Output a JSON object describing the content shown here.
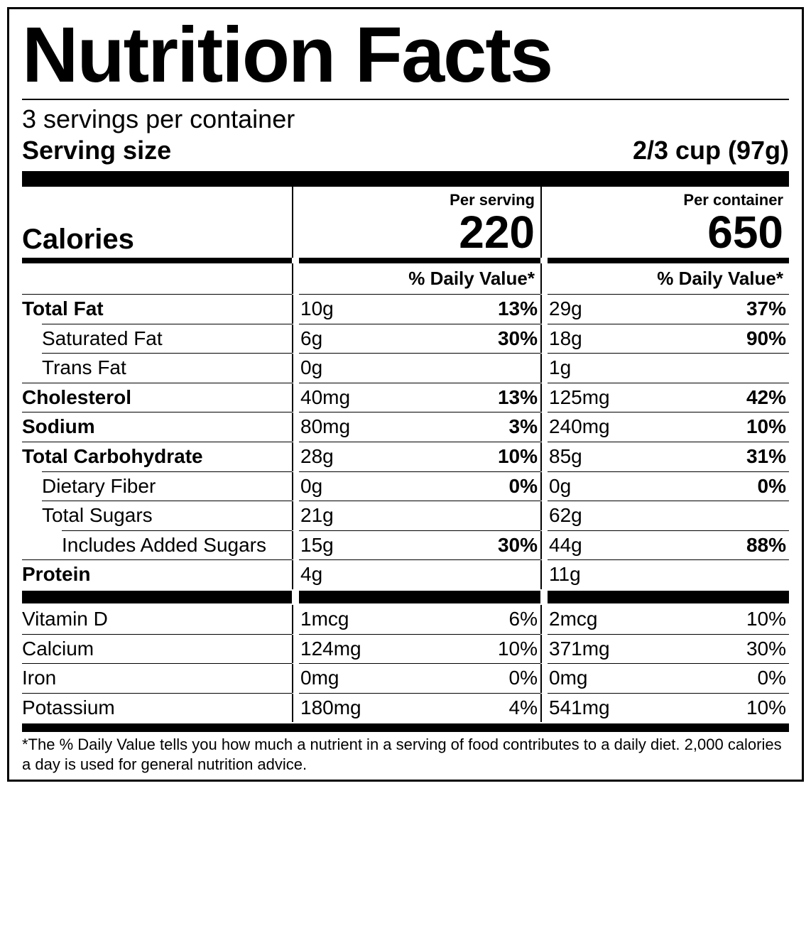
{
  "title": "Nutrition Facts",
  "servings_per_container": "3 servings per container",
  "serving_size_label": "Serving size",
  "serving_size_value": "2/3 cup (97g)",
  "calories_label": "Calories",
  "per_serving_label": "Per serving",
  "per_container_label": "Per container",
  "calories_serving": "220",
  "calories_container": "650",
  "dv_header": "% Daily Value*",
  "nutrients": [
    {
      "name": "Total Fat",
      "bold": true,
      "indent": 0,
      "s_amt": "10g",
      "s_dv": "13%",
      "c_amt": "29g",
      "c_dv": "37%",
      "dv_bold": true
    },
    {
      "name": "Saturated Fat",
      "bold": false,
      "indent": 1,
      "s_amt": "6g",
      "s_dv": "30%",
      "c_amt": "18g",
      "c_dv": "90%",
      "dv_bold": true
    },
    {
      "name": "Trans Fat",
      "bold": false,
      "indent": 1,
      "s_amt": "0g",
      "s_dv": "",
      "c_amt": "1g",
      "c_dv": "",
      "dv_bold": true
    },
    {
      "name": "Cholesterol",
      "bold": true,
      "indent": 0,
      "s_amt": "40mg",
      "s_dv": "13%",
      "c_amt": "125mg",
      "c_dv": "42%",
      "dv_bold": true
    },
    {
      "name": "Sodium",
      "bold": true,
      "indent": 0,
      "s_amt": "80mg",
      "s_dv": "3%",
      "c_amt": "240mg",
      "c_dv": "10%",
      "dv_bold": true
    },
    {
      "name": "Total Carbohydrate",
      "bold": true,
      "indent": 0,
      "s_amt": "28g",
      "s_dv": "10%",
      "c_amt": "85g",
      "c_dv": "31%",
      "dv_bold": true
    },
    {
      "name": "Dietary Fiber",
      "bold": false,
      "indent": 1,
      "s_amt": "0g",
      "s_dv": "0%",
      "c_amt": "0g",
      "c_dv": "0%",
      "dv_bold": true
    },
    {
      "name": "Total Sugars",
      "bold": false,
      "indent": 1,
      "s_amt": "21g",
      "s_dv": "",
      "c_amt": "62g",
      "c_dv": "",
      "dv_bold": true
    },
    {
      "name": "Includes Added Sugars",
      "bold": false,
      "indent": 2,
      "s_amt": "15g",
      "s_dv": "30%",
      "c_amt": "44g",
      "c_dv": "88%",
      "dv_bold": true
    },
    {
      "name": "Protein",
      "bold": true,
      "indent": 0,
      "s_amt": "4g",
      "s_dv": "",
      "c_amt": "11g",
      "c_dv": "",
      "dv_bold": true
    }
  ],
  "vitamins": [
    {
      "name": "Vitamin D",
      "s_amt": "1mcg",
      "s_dv": "6%",
      "c_amt": "2mcg",
      "c_dv": "10%"
    },
    {
      "name": "Calcium",
      "s_amt": "124mg",
      "s_dv": "10%",
      "c_amt": "371mg",
      "c_dv": "30%"
    },
    {
      "name": "Iron",
      "s_amt": "0mg",
      "s_dv": "0%",
      "c_amt": "0mg",
      "c_dv": "0%"
    },
    {
      "name": "Potassium",
      "s_amt": "180mg",
      "s_dv": "4%",
      "c_amt": "541mg",
      "c_dv": "10%"
    }
  ],
  "footnote": "*The % Daily Value tells you how much a nutrient in a serving of food contributes to a daily diet. 2,000 calories a day is used for general nutrition advice."
}
